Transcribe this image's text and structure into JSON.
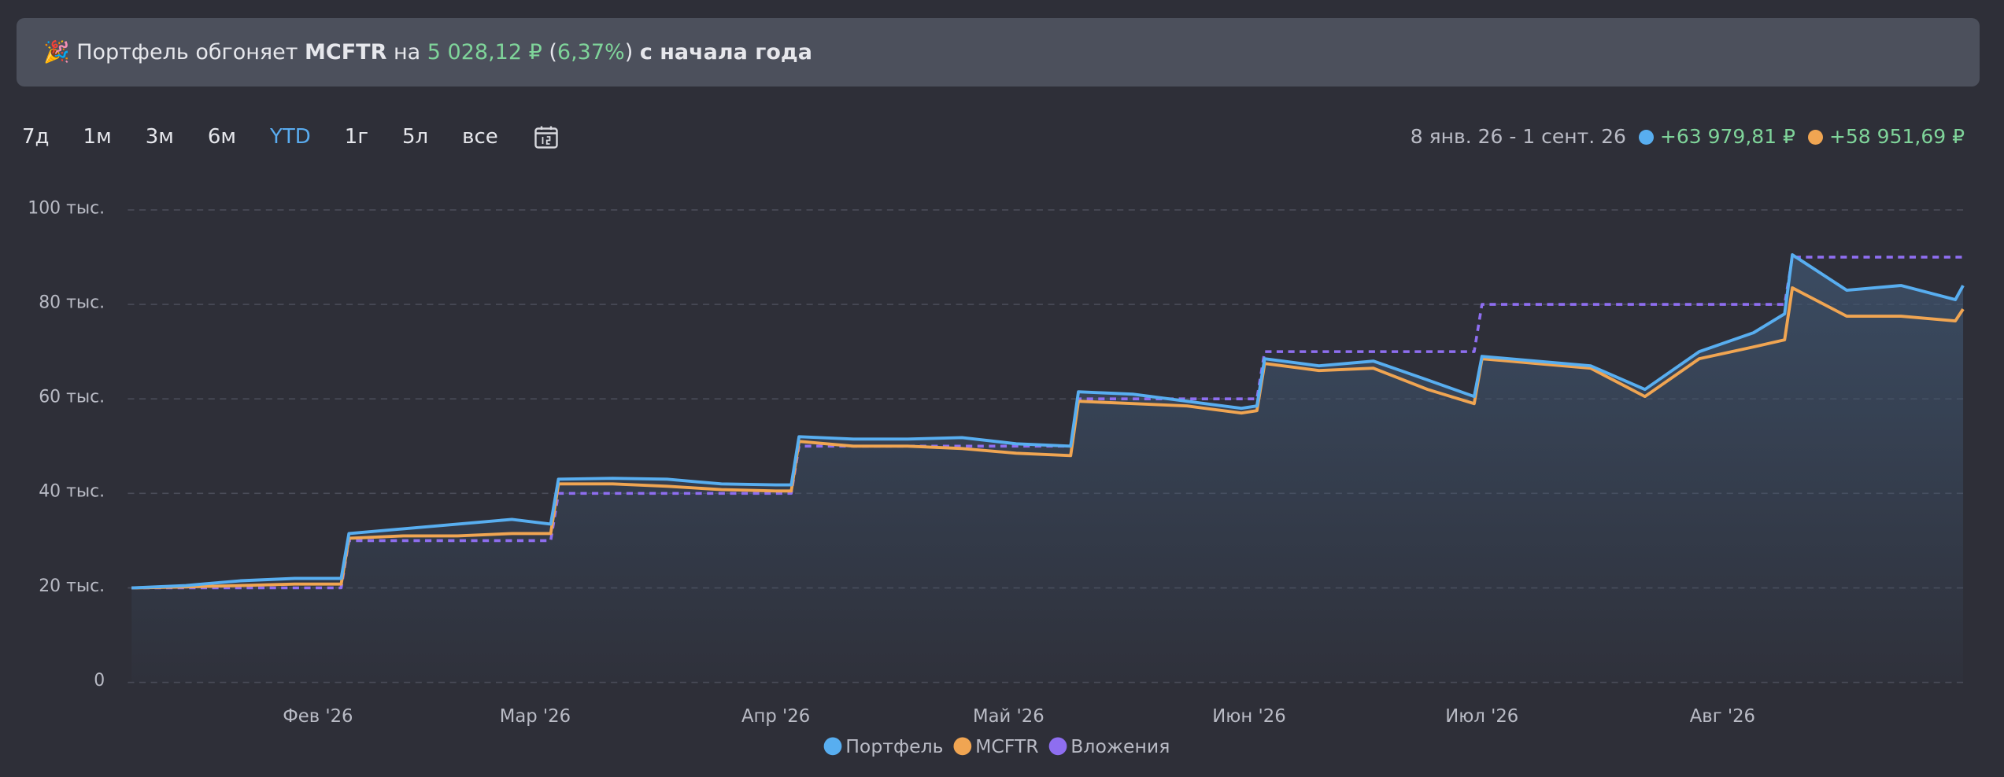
{
  "banner": {
    "prefix": "🎉 Портфель обгоняет",
    "index": "MCFTR",
    "on": "на",
    "amount": "5 028,12 ₽",
    "open": "(",
    "percent": "6,37%",
    "close": ")",
    "suffix": "с начала года"
  },
  "periods": [
    "7д",
    "1м",
    "3м",
    "6м",
    "YTD",
    "1г",
    "5л",
    "все"
  ],
  "active_period": "YTD",
  "range": "8 янв. 26 - 1 сент. 26",
  "changes": [
    "+63 979,81 ₽",
    "+58 951,69 ₽"
  ],
  "chart_data": {
    "type": "line",
    "x": [
      "2026-01-08",
      "2026-01-15",
      "2026-01-22",
      "2026-01-29",
      "2026-02-04",
      "2026-02-05",
      "2026-02-12",
      "2026-02-19",
      "2026-02-26",
      "2026-03-03",
      "2026-03-04",
      "2026-03-11",
      "2026-03-18",
      "2026-03-25",
      "2026-04-01",
      "2026-04-03",
      "2026-04-04",
      "2026-04-11",
      "2026-04-18",
      "2026-04-25",
      "2026-05-02",
      "2026-05-09",
      "2026-05-10",
      "2026-05-17",
      "2026-05-24",
      "2026-05-31",
      "2026-06-02",
      "2026-06-03",
      "2026-06-10",
      "2026-06-17",
      "2026-06-24",
      "2026-06-30",
      "2026-07-01",
      "2026-07-08",
      "2026-07-15",
      "2026-07-22",
      "2026-07-29",
      "2026-08-05",
      "2026-08-09",
      "2026-08-10",
      "2026-08-17",
      "2026-08-24",
      "2026-08-31",
      "2026-09-01"
    ],
    "series": [
      {
        "name": "Портфель",
        "color": "#58aef0",
        "values": [
          20000,
          20500,
          21500,
          22000,
          22000,
          31500,
          32500,
          33500,
          34500,
          33500,
          43000,
          43200,
          43000,
          42000,
          41800,
          41800,
          52000,
          51500,
          51500,
          51800,
          50500,
          50000,
          61500,
          61000,
          59500,
          58000,
          58500,
          68500,
          67000,
          68000,
          64000,
          60500,
          69000,
          68000,
          67000,
          62000,
          70000,
          74000,
          78000,
          90500,
          83000,
          84000,
          81000,
          84000
        ]
      },
      {
        "name": "MCFTR",
        "color": "#f0a552",
        "values": [
          20000,
          20200,
          20500,
          20800,
          20800,
          30500,
          31000,
          31000,
          31500,
          31500,
          42000,
          42000,
          41500,
          40800,
          40500,
          40500,
          51000,
          50000,
          50000,
          49500,
          48500,
          48000,
          59500,
          59000,
          58500,
          57000,
          57500,
          67500,
          66000,
          66500,
          62000,
          59000,
          68500,
          67500,
          66500,
          60500,
          68500,
          71000,
          72500,
          83500,
          77500,
          77500,
          76500,
          79000
        ]
      },
      {
        "name": "Вложения",
        "color": "#8e6ef0",
        "dashed": true,
        "values": [
          20000,
          20000,
          20000,
          20000,
          20000,
          30000,
          30000,
          30000,
          30000,
          30000,
          40000,
          40000,
          40000,
          40000,
          40000,
          40000,
          50000,
          50000,
          50000,
          50000,
          50000,
          50000,
          60000,
          60000,
          60000,
          60000,
          60000,
          70000,
          70000,
          70000,
          70000,
          70000,
          80000,
          80000,
          80000,
          80000,
          80000,
          80000,
          80000,
          90000,
          90000,
          90000,
          90000,
          90000
        ]
      }
    ],
    "xlim": [
      "2026-01-08",
      "2026-09-01"
    ],
    "xticks": [
      {
        "value": "2026-02-01",
        "label": "Фев '26"
      },
      {
        "value": "2026-03-01",
        "label": "Мар '26"
      },
      {
        "value": "2026-04-01",
        "label": "Апр '26"
      },
      {
        "value": "2026-05-01",
        "label": "Май '26"
      },
      {
        "value": "2026-06-01",
        "label": "Июн '26"
      },
      {
        "value": "2026-07-01",
        "label": "Июл '26"
      },
      {
        "value": "2026-08-01",
        "label": "Авг '26"
      }
    ],
    "ylim": [
      0,
      100000
    ],
    "yticks": [
      0,
      {
        "value": 20000,
        "label": "20 тыс."
      },
      {
        "value": 40000,
        "label": "40 тыс."
      },
      {
        "value": 60000,
        "label": "60 тыс."
      },
      {
        "value": 80000,
        "label": "80 тыс."
      },
      {
        "value": 100000,
        "label": "100 тыс."
      }
    ],
    "grid": true,
    "area_under": "Портфель"
  }
}
